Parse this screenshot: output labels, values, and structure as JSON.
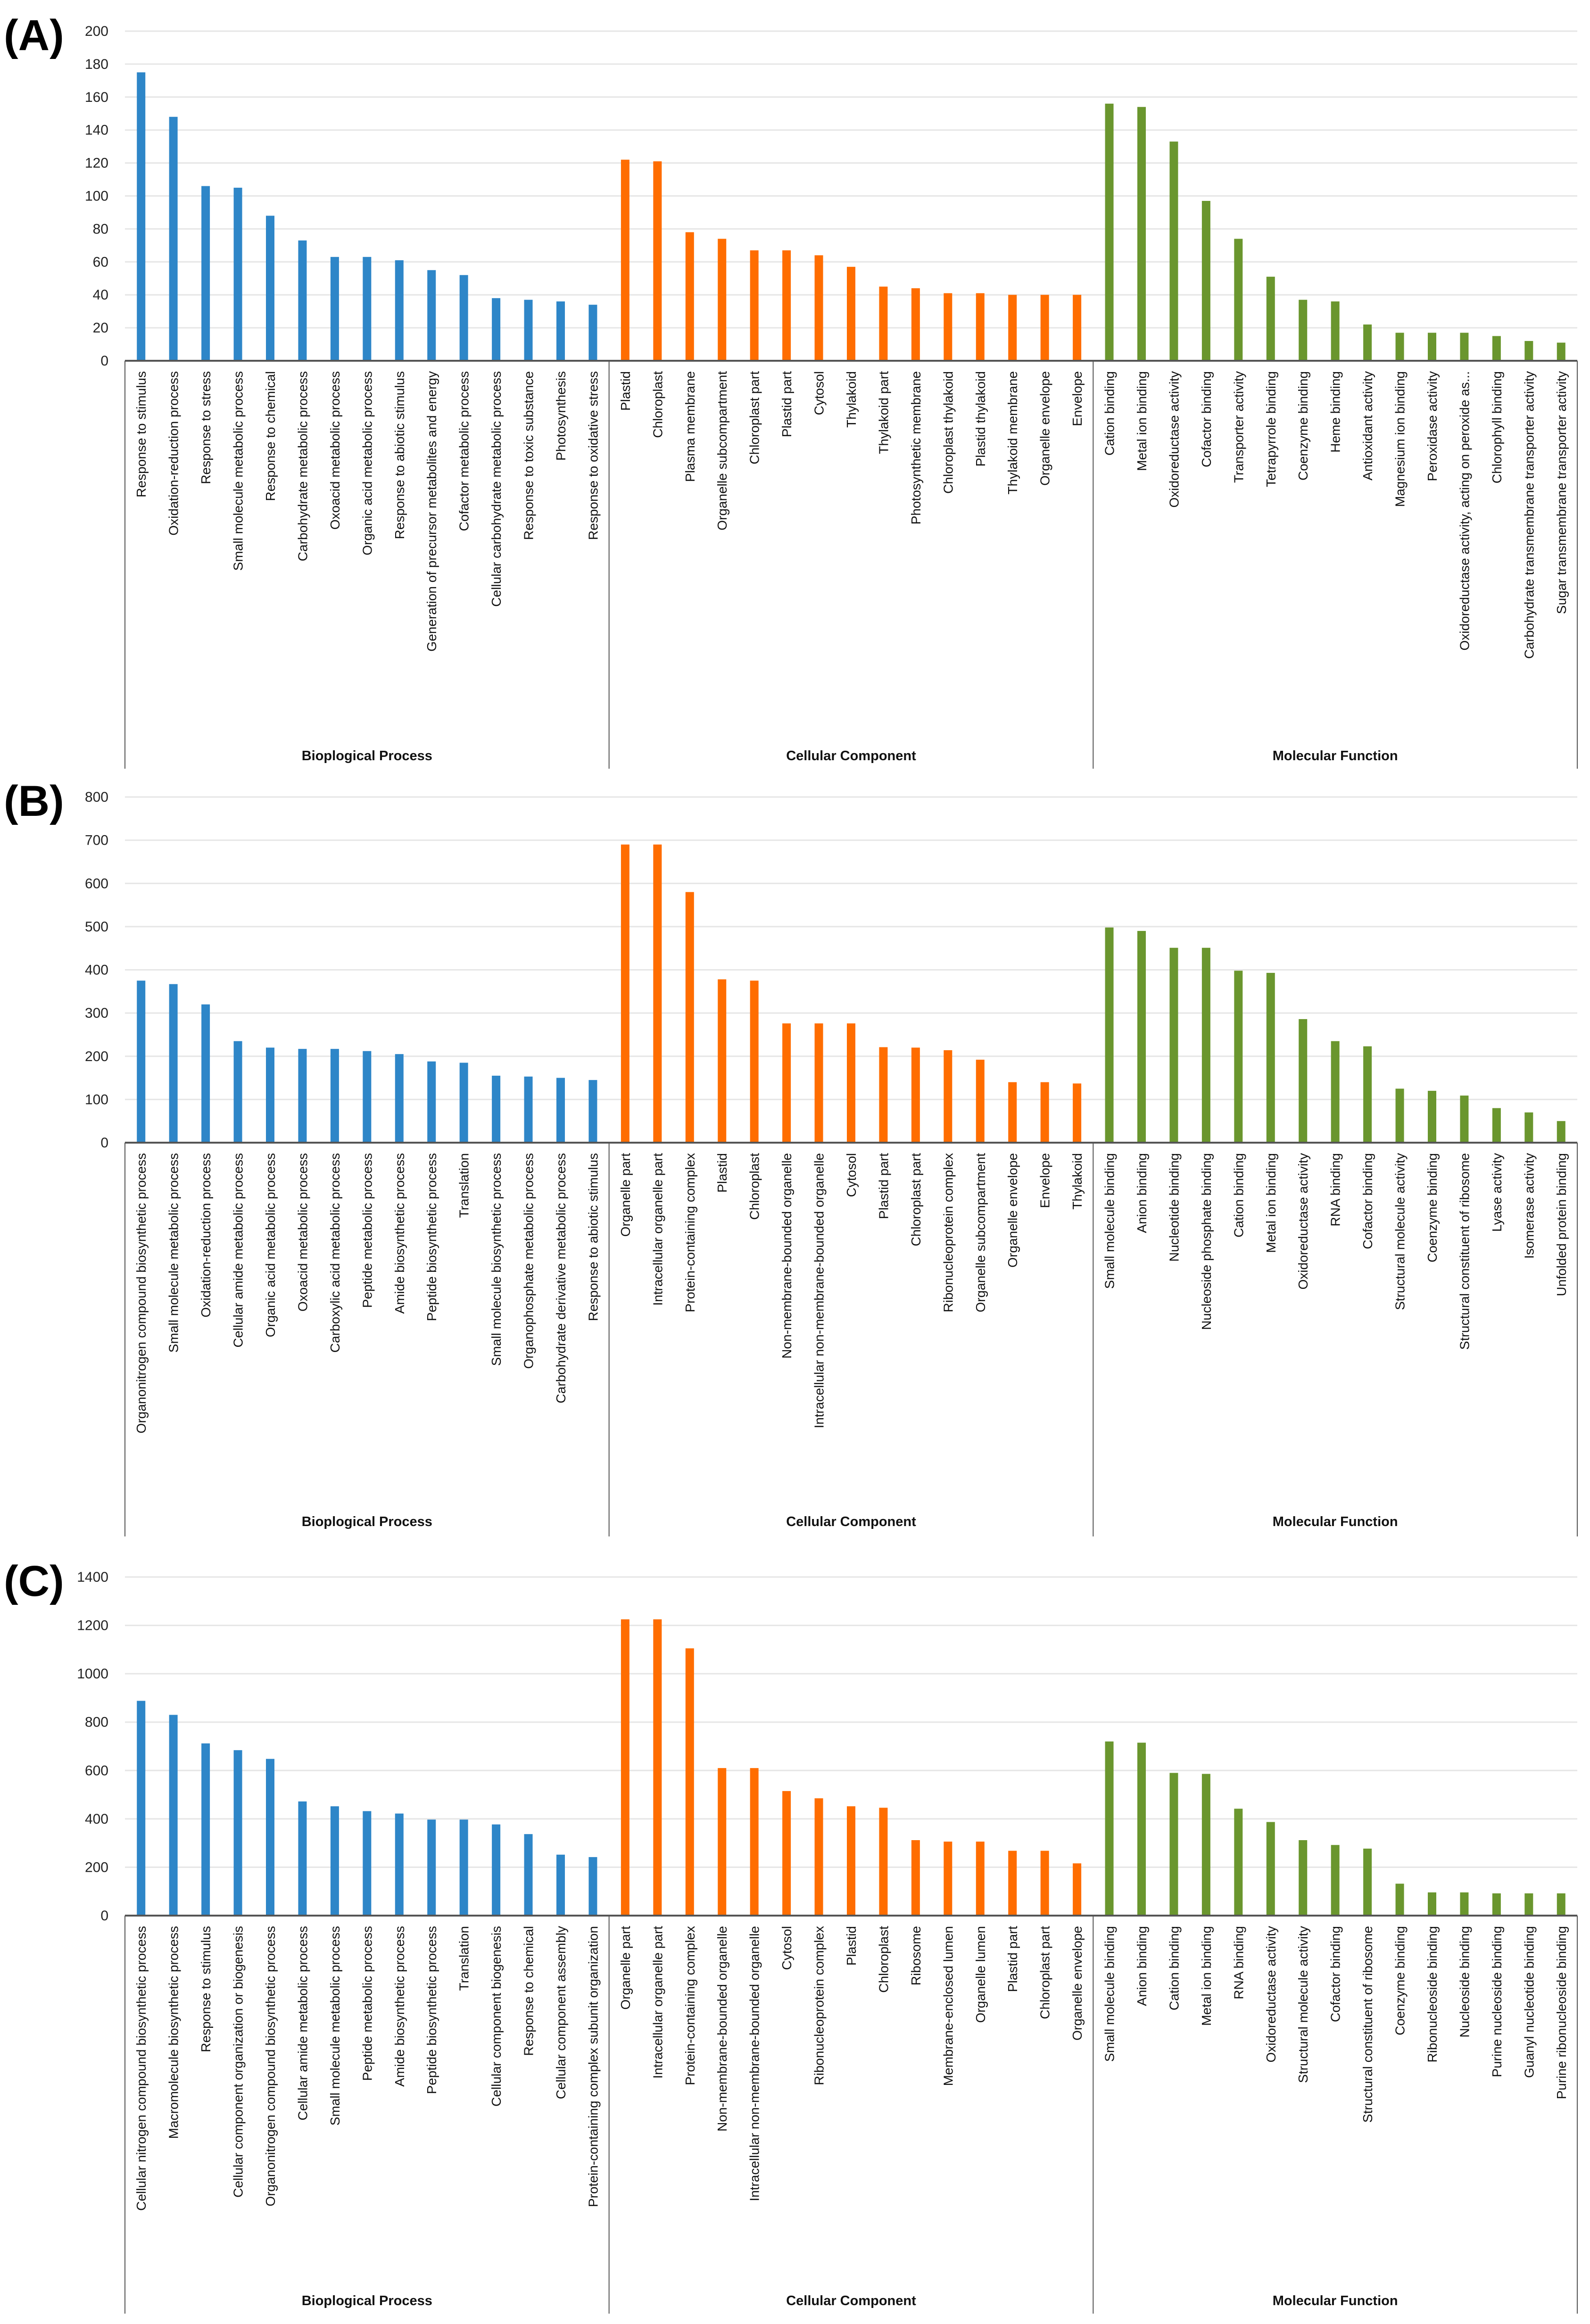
{
  "colors": {
    "Biological Process": "#2E86C8",
    "Cellular Component": "#FF6D00",
    "Molecular Function": "#6A962E",
    "grid": "#E6E6E6",
    "axis": "#555555"
  },
  "chart_data": [
    {
      "type": "bar",
      "panel_label": "(A)",
      "ylim": [
        0,
        200
      ],
      "ytick_step": 20,
      "grid": true,
      "groups": [
        {
          "name": "Bioplogical Process",
          "categories": [
            "Response to stimulus",
            "Oxidation-reduction process",
            "Response to stress",
            "Small molecule metabolic process",
            "Response to chemical",
            "Carbohydrate metabolic process",
            "Oxoacid metabolic process",
            "Organic acid metabolic process",
            "Response to abiotic stimulus",
            "Generation of precursor metabolites and energy",
            "Cofactor metabolic process",
            "Cellular carbohydrate metabolic process",
            "Response to toxic substance",
            "Photosynthesis",
            "Response to oxidative stress"
          ],
          "values": [
            175,
            148,
            106,
            105,
            88,
            73,
            63,
            63,
            61,
            55,
            52,
            38,
            37,
            36,
            34
          ]
        },
        {
          "name": "Cellular Component",
          "categories": [
            "Plastid",
            "Chloroplast",
            "Plasma membrane",
            "Organelle subcompartment",
            "Chloroplast part",
            "Plastid part",
            "Cytosol",
            "Thylakoid",
            "Thylakoid part",
            "Photosynthetic membrane",
            "Chloroplast thylakoid",
            "Plastid thylakoid",
            "Thylakoid membrane",
            "Organelle envelope",
            "Envelope"
          ],
          "values": [
            122,
            121,
            78,
            74,
            67,
            67,
            64,
            57,
            45,
            44,
            41,
            41,
            40,
            40,
            40
          ]
        },
        {
          "name": "Molecular Function",
          "categories": [
            "Cation binding",
            "Metal ion binding",
            "Oxidoreductase activity",
            "Cofactor binding",
            "Transporter activity",
            "Tetrapyrrole binding",
            "Coenzyme binding",
            "Heme binding",
            "Antioxidant activity",
            "Magnesium ion binding",
            "Peroxidase activity",
            "Oxidoreductase activity, acting on peroxide as...",
            "Chlorophyll binding",
            "Carbohydrate transmembrane transporter activity",
            "Sugar transmembrane transporter activity"
          ],
          "values": [
            156,
            154,
            133,
            97,
            74,
            51,
            37,
            36,
            22,
            17,
            17,
            17,
            15,
            12,
            11
          ]
        }
      ]
    },
    {
      "type": "bar",
      "panel_label": "(B)",
      "ylim": [
        0,
        800
      ],
      "ytick_step": 100,
      "grid": true,
      "groups": [
        {
          "name": "Bioplogical Process",
          "categories": [
            "Organonitrogen compound biosynthetic process",
            "Small molecule metabolic process",
            "Oxidation-reduction process",
            "Cellular amide metabolic process",
            "Organic acid metabolic process",
            "Oxoacid metabolic process",
            "Carboxylic acid metabolic process",
            "Peptide metabolic process",
            "Amide biosynthetic process",
            "Peptide biosynthetic process",
            "Translation",
            "Small molecule biosynthetic process",
            "Organophosphate metabolic process",
            "Carbohydrate derivative metabolic process",
            "Response to abiotic stimulus"
          ],
          "values": [
            375,
            367,
            320,
            235,
            220,
            217,
            217,
            212,
            205,
            188,
            185,
            155,
            153,
            150,
            145
          ]
        },
        {
          "name": "Cellular Component",
          "categories": [
            "Organelle part",
            "Intracellular organelle part",
            "Protein-containing complex",
            "Plastid",
            "Chloroplast",
            "Non-membrane-bounded organelle",
            "Intracellular non-membrane-bounded organelle",
            "Cytosol",
            "Plastid part",
            "Chloroplast part",
            "Ribonucleoprotein complex",
            "Organelle subcompartment",
            "Organelle envelope",
            "Envelope",
            "Thylakoid"
          ],
          "values": [
            690,
            690,
            580,
            378,
            375,
            276,
            276,
            276,
            221,
            220,
            214,
            192,
            140,
            140,
            137
          ]
        },
        {
          "name": "Molecular Function",
          "categories": [
            "Small molecule binding",
            "Anion binding",
            "Nucleotide binding",
            "Nucleoside phosphate binding",
            "Cation binding",
            "Metal ion binding",
            "Oxidoreductase activity",
            "RNA binding",
            "Cofactor binding",
            "Structural molecule activity",
            "Coenzyme binding",
            "Structural constituent of ribosome",
            "Lyase activity",
            "Isomerase activity",
            "Unfolded protein binding"
          ],
          "values": [
            498,
            490,
            451,
            451,
            398,
            393,
            286,
            235,
            223,
            125,
            120,
            109,
            80,
            70,
            50
          ]
        }
      ]
    },
    {
      "type": "bar",
      "panel_label": "(C)",
      "ylim": [
        0,
        1400
      ],
      "ytick_step": 200,
      "grid": true,
      "groups": [
        {
          "name": "Bioplogical Process",
          "categories": [
            "Cellular nitrogen compound biosynthetic process",
            "Macromolecule biosynthetic process",
            "Response to stimulus",
            "Cellular component organization or biogenesis",
            "Organonitrogen compound biosynthetic process",
            "Cellular amide metabolic process",
            "Small molecule metabolic process",
            "Peptide metabolic process",
            "Amide biosynthetic process",
            "Peptide biosynthetic process",
            "Translation",
            "Cellular component biogenesis",
            "Response to chemical",
            "Cellular component assembly",
            "Protein-containing complex subunit organization"
          ],
          "values": [
            888,
            830,
            712,
            684,
            648,
            472,
            452,
            432,
            422,
            397,
            397,
            377,
            337,
            252,
            242
          ]
        },
        {
          "name": "Cellular Component",
          "categories": [
            "Organelle part",
            "Intracellular organelle part",
            "Protein-containing complex",
            "Non-membrane-bounded organelle",
            "Intracellular non-membrane-bounded organelle",
            "Cytosol",
            "Ribonucleoprotein complex",
            "Plastid",
            "Chloroplast",
            "Ribosome",
            "Membrane-enclosed lumen",
            "Organelle lumen",
            "Plastid part",
            "Chloroplast part",
            "Organelle envelope"
          ],
          "values": [
            1225,
            1225,
            1105,
            610,
            610,
            515,
            485,
            452,
            446,
            312,
            306,
            306,
            268,
            268,
            216
          ]
        },
        {
          "name": "Molecular Function",
          "categories": [
            "Small molecule binding",
            "Anion binding",
            "Cation binding",
            "Metal ion binding",
            "RNA binding",
            "Oxidoreductase activity",
            "Structural molecule activity",
            "Cofactor binding",
            "Structural constituent of ribosome",
            "Coenzyme binding",
            "Ribonucleoside binding",
            "Nucleoside binding",
            "Purine nucleoside binding",
            "Guanyl nucleotide binding",
            "Purine ribonucleoside binding"
          ],
          "values": [
            720,
            715,
            590,
            586,
            442,
            387,
            312,
            292,
            277,
            132,
            96,
            96,
            92,
            92,
            92
          ]
        }
      ]
    }
  ]
}
